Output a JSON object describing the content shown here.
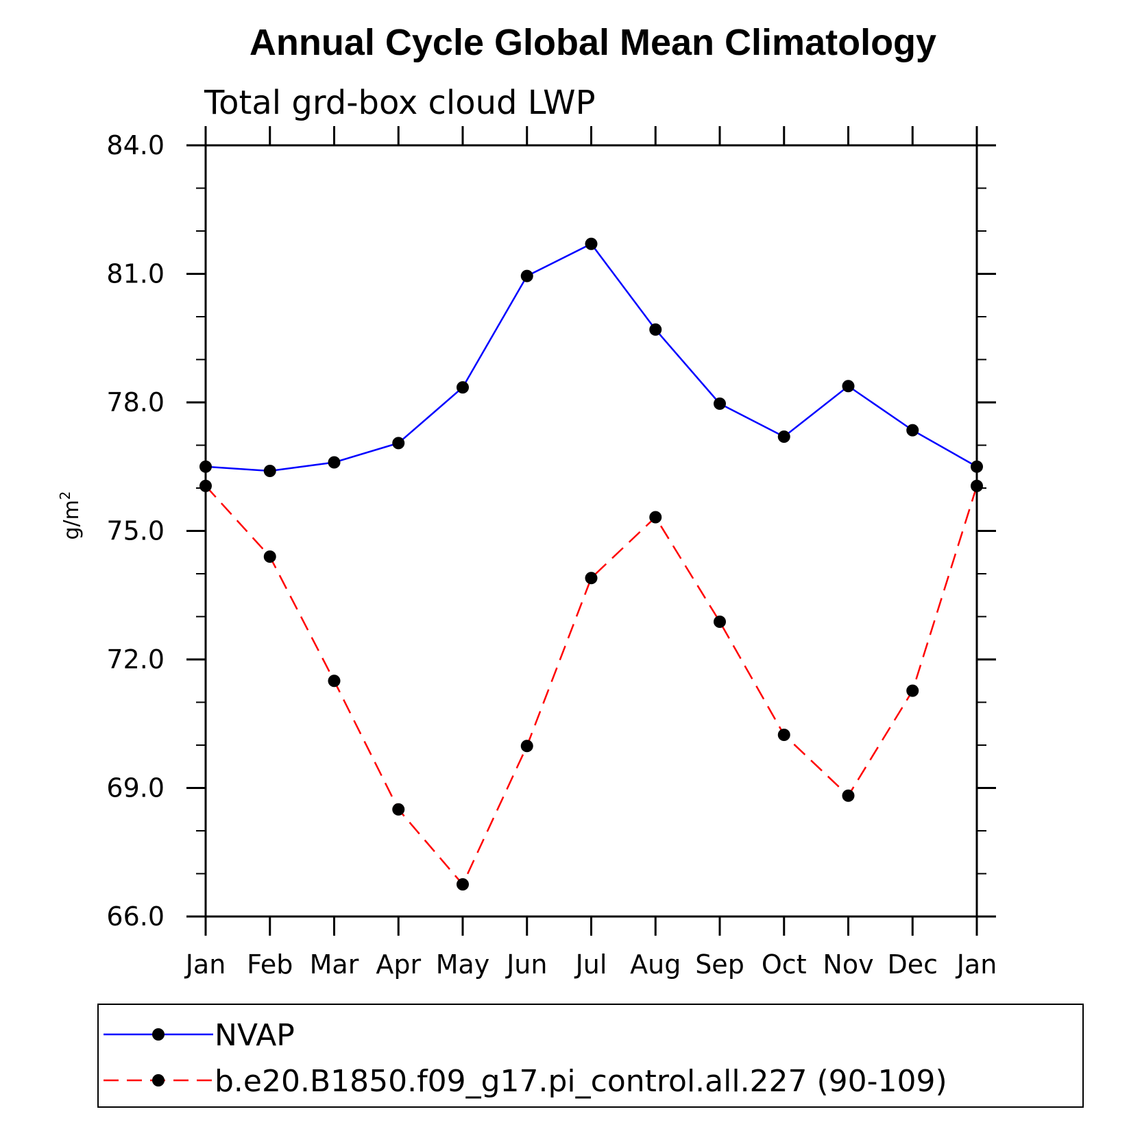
{
  "chart_data": {
    "type": "line",
    "title": "Annual Cycle Global Mean Climatology",
    "subtitle": "Total grd-box cloud LWP",
    "ylabel": "g/m",
    "ylabel_superscript": "2",
    "xlabel": "",
    "categories": [
      "Jan",
      "Feb",
      "Mar",
      "Apr",
      "May",
      "Jun",
      "Jul",
      "Aug",
      "Sep",
      "Oct",
      "Nov",
      "Dec",
      "Jan"
    ],
    "ylim": [
      66.0,
      84.0
    ],
    "yticks": [
      "66.0",
      "69.0",
      "72.0",
      "75.0",
      "78.0",
      "81.0",
      "84.0"
    ],
    "grid": false,
    "legend_placement": "bottom",
    "series": [
      {
        "name": "NVAP",
        "color": "#0000ff",
        "dash": "solid",
        "values": [
          76.5,
          76.4,
          76.6,
          77.05,
          78.35,
          80.95,
          81.7,
          79.7,
          77.97,
          77.2,
          78.38,
          77.35,
          76.5
        ]
      },
      {
        "name": "b.e20.B1850.f09_g17.pi_control.all.227 (90-109)",
        "color": "#ff0000",
        "dash": "dashed",
        "values": [
          76.05,
          74.4,
          71.5,
          68.5,
          66.75,
          69.98,
          73.9,
          75.32,
          72.88,
          70.24,
          68.82,
          71.27,
          76.05
        ]
      }
    ]
  }
}
